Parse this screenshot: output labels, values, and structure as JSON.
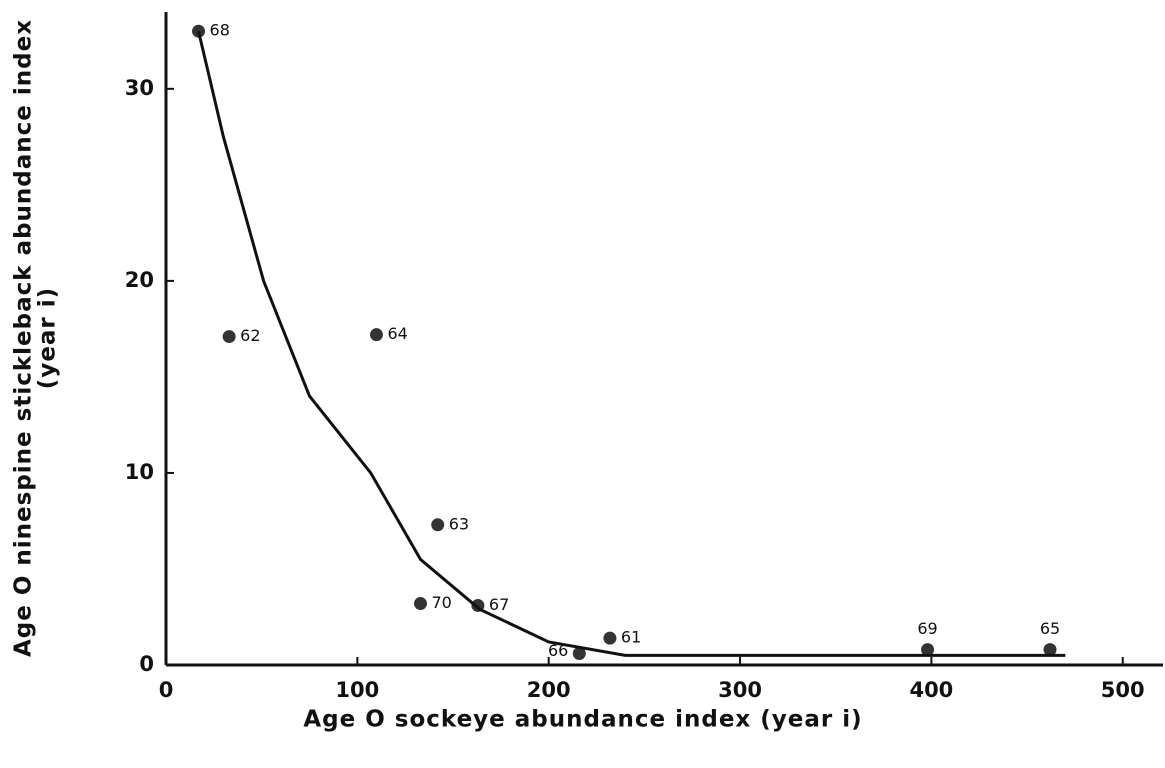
{
  "chart_data": {
    "type": "scatter",
    "xlabel": "Age O sockeye abundance index  (year i)",
    "ylabel": [
      "Age O ninespine stickleback abundance index",
      "(year i)"
    ],
    "xlim": [
      0,
      520
    ],
    "ylim": [
      0,
      34
    ],
    "xticks": [
      0,
      100,
      200,
      300,
      400,
      500
    ],
    "yticks": [
      0,
      10,
      20,
      30
    ],
    "grid": false,
    "series": [
      {
        "type": "scatter",
        "color": "#333333",
        "x": [
          17,
          33,
          110,
          142,
          133,
          163,
          216,
          232,
          398,
          462
        ],
        "values": [
          33,
          17.1,
          17.2,
          7.3,
          3.2,
          3.1,
          0.6,
          1.4,
          0.8,
          0.8
        ],
        "labels": [
          "68",
          "62",
          "64",
          "63",
          "70",
          "67",
          "66",
          "61",
          "69",
          "65"
        ]
      },
      {
        "type": "line",
        "color": "#111111",
        "x": [
          17,
          30,
          51,
          75,
          107,
          133,
          164,
          200,
          240,
          300,
          400,
          470
        ],
        "values": [
          33,
          27.5,
          20,
          14,
          10,
          5.5,
          2.9,
          1.2,
          0.5,
          0.5,
          0.5,
          0.5
        ]
      }
    ]
  }
}
